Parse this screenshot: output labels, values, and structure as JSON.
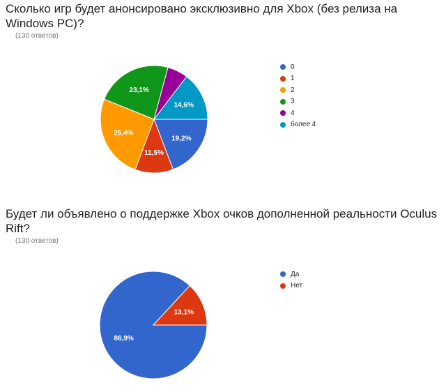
{
  "questions": [
    {
      "title": "Сколько игр будет анонсировано эксклюзивно для Xbox (без релиза на Windows PC)?",
      "response_count": "(130 ответов)"
    },
    {
      "title": "Будет ли объявлено о поддержке Xbox очков дополненной реальности Oculus Rift?",
      "response_count": "(130 ответов)"
    }
  ],
  "chart_data": [
    {
      "type": "pie",
      "title": "Сколько игр будет анонсировано эксклюзивно для Xbox (без релиза на Windows PC)?",
      "slices": [
        {
          "label": "0",
          "value": 19.2,
          "display": "19,2%",
          "color": "#3366cc"
        },
        {
          "label": "1",
          "value": 11.5,
          "display": "11,5%",
          "color": "#dc3912"
        },
        {
          "label": "2",
          "value": 25.4,
          "display": "25,4%",
          "color": "#ff9900"
        },
        {
          "label": "3",
          "value": 23.1,
          "display": "23,1%",
          "color": "#109618"
        },
        {
          "label": "4",
          "value": 6.2,
          "display": "",
          "color": "#990099"
        },
        {
          "label": "более 4",
          "value": 14.6,
          "display": "14,6%",
          "color": "#0099c6"
        }
      ],
      "legend_position": "right"
    },
    {
      "type": "pie",
      "title": "Будет ли объявлено о поддержке Xbox очков дополненной реальности Oculus Rift?",
      "slices": [
        {
          "label": "Да",
          "value": 86.9,
          "display": "86,9%",
          "color": "#3366cc"
        },
        {
          "label": "Нет",
          "value": 13.1,
          "display": "13,1%",
          "color": "#dc3912"
        }
      ],
      "legend_position": "right"
    }
  ]
}
